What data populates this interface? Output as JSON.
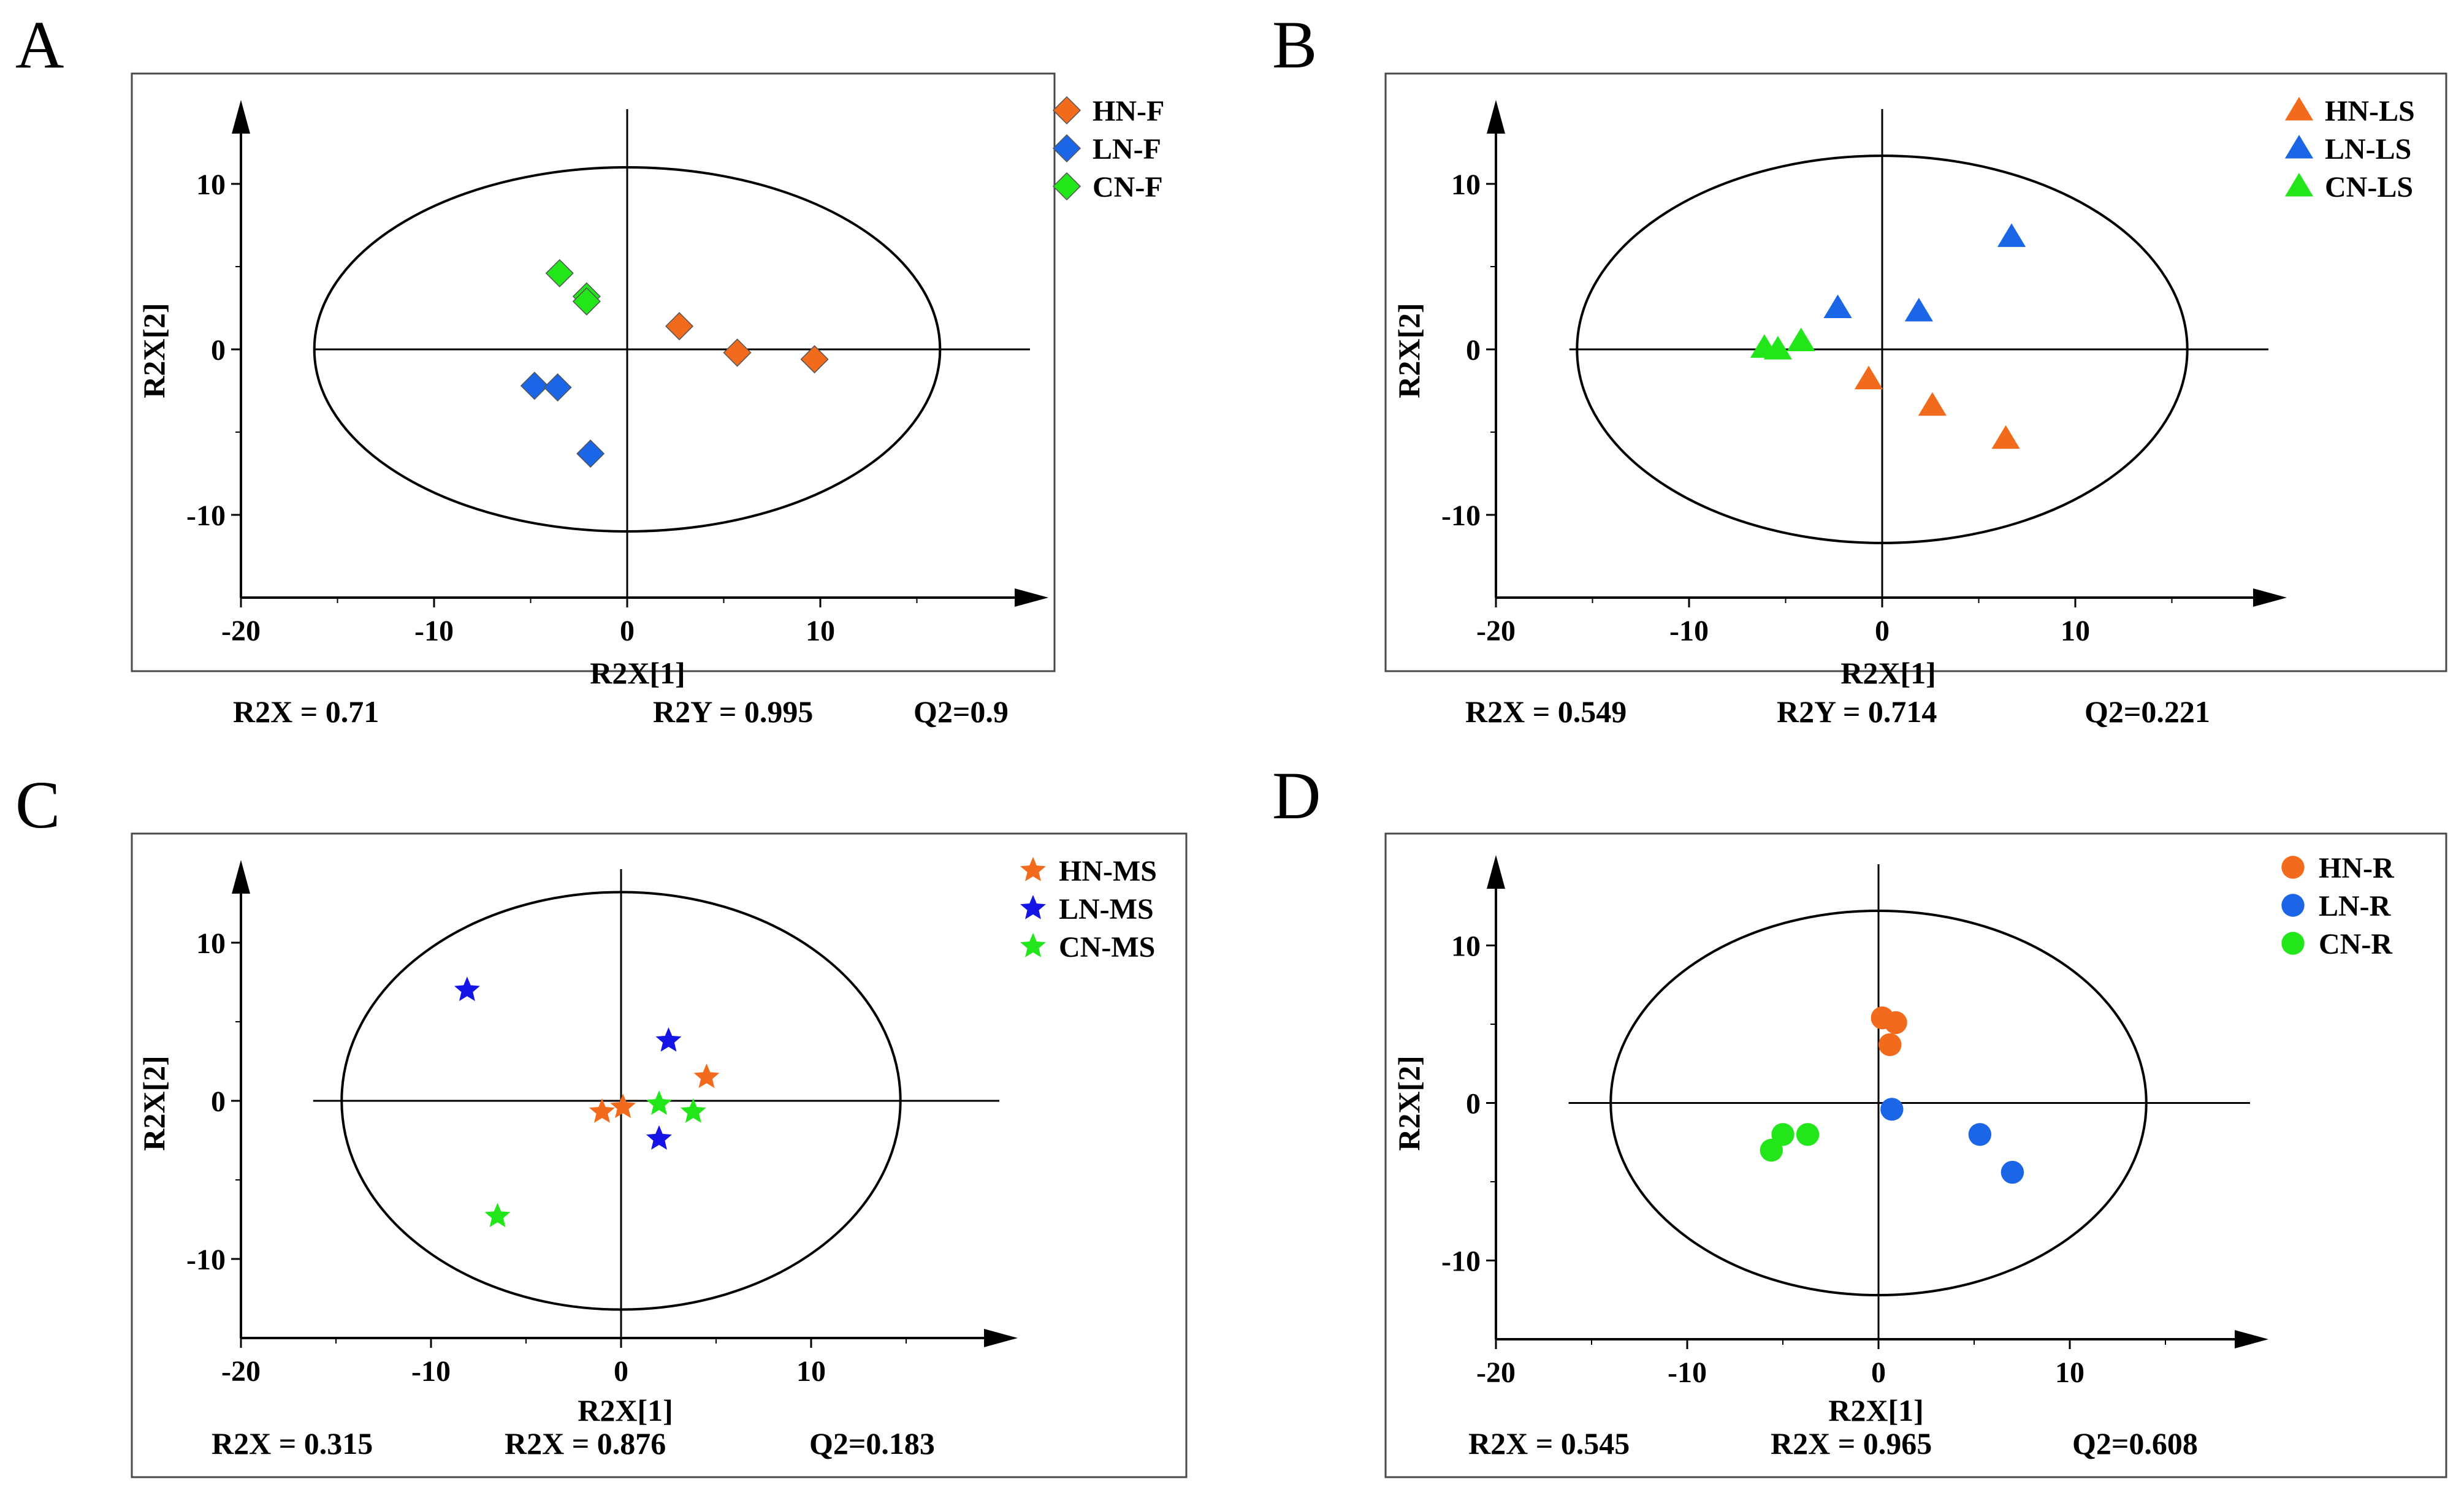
{
  "chart_data": [
    {
      "panel": "A",
      "type": "scatter",
      "xlabel": "R2X[1]",
      "ylabel": "R2X[2]",
      "xlim": [
        -20,
        20
      ],
      "ylim": [
        -15,
        15
      ],
      "xticks": [
        "-20",
        "-10",
        "0",
        "10"
      ],
      "yticks": [
        "10",
        "0",
        "-10"
      ],
      "ellipse": {
        "rx": 16.2,
        "ry": 11
      },
      "stats": [
        "R2X = 0.71",
        "R2Y = 0.995",
        "Q2=0.9"
      ],
      "series": [
        {
          "name": "HN-F",
          "color": "#f26b1d",
          "marker": "diamond",
          "points": [
            [
              2.7,
              1.4
            ],
            [
              5.7,
              -0.2
            ],
            [
              9.7,
              -0.6
            ]
          ]
        },
        {
          "name": "LN-F",
          "color": "#1a66e6",
          "marker": "diamond",
          "points": [
            [
              -4.8,
              -2.2
            ],
            [
              -3.6,
              -2.3
            ],
            [
              -1.9,
              -6.3
            ]
          ]
        },
        {
          "name": "CN-F",
          "color": "#22e61a",
          "marker": "diamond",
          "points": [
            [
              -3.5,
              4.6
            ],
            [
              -2.1,
              3.2
            ],
            [
              -2.1,
              2.9
            ]
          ]
        }
      ]
    },
    {
      "panel": "B",
      "type": "scatter",
      "xlabel": "R2X[1]",
      "ylabel": "R2X[2]",
      "xlim": [
        -20,
        20
      ],
      "ylim": [
        -15,
        15
      ],
      "xticks": [
        "-20",
        "-10",
        "0",
        "10"
      ],
      "yticks": [
        "10",
        "0",
        "-10"
      ],
      "ellipse": {
        "rx": 15.8,
        "ry": 11.7
      },
      "stats": [
        "R2X = 0.549",
        "R2Y = 0.714",
        "Q2=0.221"
      ],
      "series": [
        {
          "name": "HN-LS",
          "color": "#f26b1d",
          "marker": "triangle",
          "points": [
            [
              -0.7,
              -1.8
            ],
            [
              2.6,
              -3.4
            ],
            [
              6.4,
              -5.4
            ]
          ]
        },
        {
          "name": "LN-LS",
          "color": "#1a66e6",
          "marker": "triangle",
          "points": [
            [
              -2.3,
              2.5
            ],
            [
              1.9,
              2.3
            ],
            [
              6.7,
              6.8
            ]
          ]
        },
        {
          "name": "CN-LS",
          "color": "#22e61a",
          "marker": "triangle",
          "points": [
            [
              -6.1,
              0.1
            ],
            [
              -5.4,
              0.0
            ],
            [
              -4.2,
              0.5
            ]
          ]
        }
      ]
    },
    {
      "panel": "C",
      "type": "scatter",
      "xlabel": "R2X[1]",
      "ylabel": "R2X[2]",
      "xlim": [
        -20,
        20
      ],
      "ylim": [
        -15,
        15
      ],
      "xticks": [
        "-20",
        "-10",
        "0",
        "10"
      ],
      "yticks": [
        "10",
        "0",
        "-10"
      ],
      "ellipse": {
        "rx": 14.7,
        "ry": 13.2
      },
      "stats": [
        "R2X = 0.315",
        "R2X = 0.876",
        "Q2=0.183"
      ],
      "series": [
        {
          "name": "HN-MS",
          "color": "#f26b1d",
          "marker": "star",
          "points": [
            [
              -1.0,
              -0.7
            ],
            [
              0.1,
              -0.4
            ],
            [
              4.5,
              1.5
            ]
          ]
        },
        {
          "name": "LN-MS",
          "color": "#1414e6",
          "marker": "star",
          "points": [
            [
              -8.1,
              7.0
            ],
            [
              2.5,
              3.8
            ],
            [
              2.0,
              -2.4
            ]
          ]
        },
        {
          "name": "CN-MS",
          "color": "#22e61a",
          "marker": "star",
          "points": [
            [
              -6.5,
              -7.3
            ],
            [
              2.0,
              -0.2
            ],
            [
              3.8,
              -0.7
            ]
          ]
        }
      ]
    },
    {
      "panel": "D",
      "type": "scatter",
      "xlabel": "R2X[1]",
      "ylabel": "R2X[2]",
      "xlim": [
        -20,
        20
      ],
      "ylim": [
        -15,
        15
      ],
      "xticks": [
        "-20",
        "-10",
        "0",
        "10"
      ],
      "yticks": [
        "10",
        "0",
        "-10"
      ],
      "ellipse": {
        "rx": 14.0,
        "ry": 12.2
      },
      "stats": [
        "R2X = 0.545",
        "R2X = 0.965",
        "Q2=0.608"
      ],
      "series": [
        {
          "name": "HN-R",
          "color": "#f26b1d",
          "marker": "circle",
          "points": [
            [
              0.2,
              5.4
            ],
            [
              0.9,
              5.1
            ],
            [
              0.6,
              3.7
            ]
          ]
        },
        {
          "name": "LN-R",
          "color": "#1a66e6",
          "marker": "circle",
          "points": [
            [
              0.7,
              -0.4
            ],
            [
              5.3,
              -2.0
            ],
            [
              7.0,
              -4.4
            ]
          ]
        },
        {
          "name": "CN-R",
          "color": "#22e61a",
          "marker": "circle",
          "points": [
            [
              -5.6,
              -3.0
            ],
            [
              -5.0,
              -2.0
            ],
            [
              -3.7,
              -2.0
            ]
          ]
        }
      ]
    }
  ]
}
